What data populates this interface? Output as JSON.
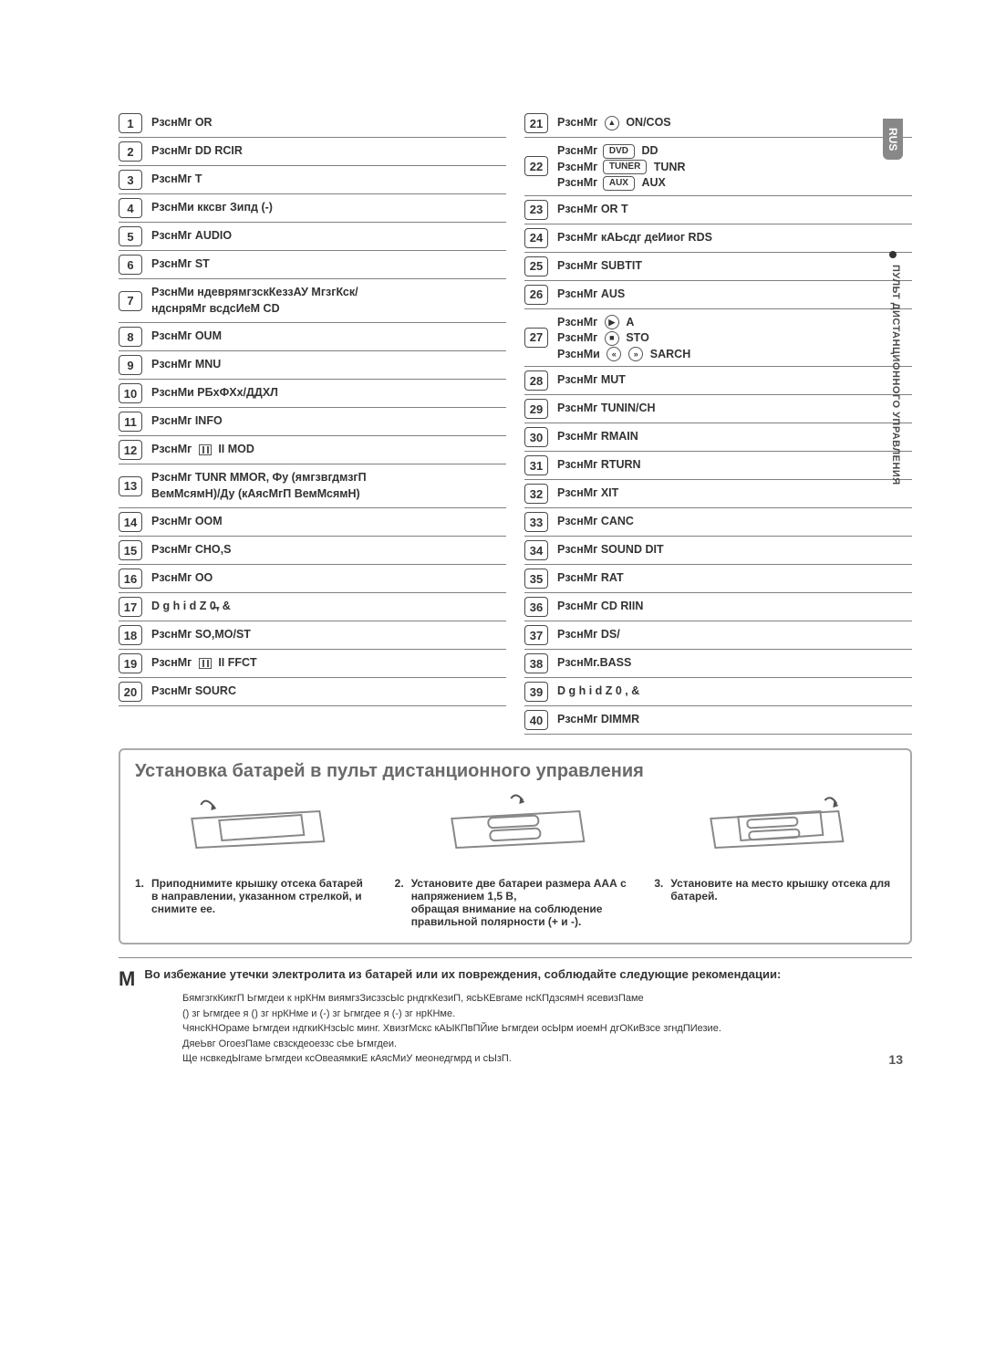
{
  "side_tab": "RUS",
  "side_text": "ПУЛЬТ ДИСТАНЦИОННОГО УПРАВЛЕНИЯ",
  "page_number": "13",
  "left_items": [
    {
      "n": "1",
      "lines": [
        "РзснМг OR"
      ]
    },
    {
      "n": "2",
      "lines": [
        "РзснМг DD RCIR"
      ]
    },
    {
      "n": "3",
      "lines": [
        "РзснМг T"
      ]
    },
    {
      "n": "4",
      "lines": [
        "РзснМи кксвг Зипд (-)"
      ]
    },
    {
      "n": "5",
      "lines": [
        "РзснМг AUDIO"
      ]
    },
    {
      "n": "6",
      "lines": [
        "РзснМг ST"
      ]
    },
    {
      "n": "7",
      "lines": [
        "РзснМи ндеврямгзскКеззАУ МгзгКск/",
        "ндснряМг всдсИеМ CD"
      ]
    },
    {
      "n": "8",
      "lines": [
        "РзснМг OUM"
      ]
    },
    {
      "n": "9",
      "lines": [
        "РзснМг MNU"
      ]
    },
    {
      "n": "10",
      "lines": [
        "РзснМи РБхФХх/ДДХЛ"
      ]
    },
    {
      "n": "11",
      "lines": [
        "РзснМг INFO"
      ]
    },
    {
      "n": "12",
      "lines": [
        "РзснМг  ▯▯ II MOD"
      ],
      "sq": true
    },
    {
      "n": "13",
      "lines": [
        "РзснМг TUNR MMOR, Фу (ямгзвгдмзгП",
        "ВемМсямН)/Ду (кАясМгП ВемМсямН)"
      ]
    },
    {
      "n": "14",
      "lines": [
        "РзснМг OOM"
      ]
    },
    {
      "n": "15",
      "lines": [
        "РзснМг CHO,S"
      ]
    },
    {
      "n": "16",
      "lines": [
        "РзснМг OO"
      ]
    },
    {
      "n": "17",
      "lines": [
        "D g h i d Z  0̶, &"
      ]
    },
    {
      "n": "18",
      "lines": [
        "РзснМг  SO,MO/ST"
      ]
    },
    {
      "n": "19",
      "lines": [
        "РзснМг  ▯▯ II FFCT"
      ],
      "sq": true
    },
    {
      "n": "20",
      "lines": [
        "РзснМг SOURC"
      ]
    }
  ],
  "right_items": [
    {
      "n": "21",
      "lines": [
        "РзснМг  ⏏ ON/COS"
      ],
      "icon": "eject"
    },
    {
      "n": "22",
      "lines": [
        "РзснМг [DVD] DD",
        "РзснМг [TUNER] TUNR",
        "РзснМг [AUX] AUX"
      ],
      "badges": [
        {
          "t": "DVD",
          "after": "DD"
        },
        {
          "t": "TUNER",
          "after": "TUNR"
        },
        {
          "t": "AUX",
          "after": "AUX"
        }
      ]
    },
    {
      "n": "23",
      "lines": [
        "РзснМг   OR   T"
      ]
    },
    {
      "n": "24",
      "lines": [
        "РзснМг кАЬсдг деИиог RDS"
      ]
    },
    {
      "n": "25",
      "lines": [
        "РзснМг SUBTIT"
      ]
    },
    {
      "n": "26",
      "lines": [
        "РзснМг AUS"
      ]
    },
    {
      "n": "27",
      "lines": [
        "РзснМг  ▶  A",
        "РзснМг  ■  STO",
        "РзснМи  ⏮ ⏭  SARCH"
      ],
      "circles": true
    },
    {
      "n": "28",
      "lines": [
        "РзснМг MUT"
      ]
    },
    {
      "n": "29",
      "lines": [
        "РзснМг TUNIN/CH"
      ]
    },
    {
      "n": "30",
      "lines": [
        "РзснМг RMAIN"
      ]
    },
    {
      "n": "31",
      "lines": [
        "РзснМг RTURN"
      ]
    },
    {
      "n": "32",
      "lines": [
        "РзснМг XIT"
      ]
    },
    {
      "n": "33",
      "lines": [
        "РзснМг CANC"
      ]
    },
    {
      "n": "34",
      "lines": [
        "РзснМг SOUND DIT"
      ]
    },
    {
      "n": "35",
      "lines": [
        "РзснМг RAT"
      ]
    },
    {
      "n": "36",
      "lines": [
        "РзснМг CD RIIN"
      ]
    },
    {
      "n": "37",
      "lines": [
        "РзснМг DS/"
      ]
    },
    {
      "n": "38",
      "lines": [
        "РзснМг.BASS"
      ]
    },
    {
      "n": "39",
      "lines": [
        "D g h i d Z  0 , &"
      ]
    },
    {
      "n": "40",
      "lines": [
        "РзснМг DIMMR"
      ]
    }
  ],
  "battery": {
    "title": "Установка батарей в пульт дистанционного управления",
    "steps": [
      {
        "n": "1.",
        "title": "Приподнимите крышку отсека батарей",
        "body": "в направлении, указанном стрелкой, и снимите ее."
      },
      {
        "n": "2.",
        "title": "Установите две батареи размера ААА с напряжением 1,5 В,",
        "body": "обращая внимание на соблюдение правильной полярности (+ и -)."
      },
      {
        "n": "3.",
        "title": "Установите на место крышку отсека для батарей.",
        "body": ""
      }
    ]
  },
  "caution": {
    "letter": "M",
    "title": "Во избежание утечки электролита из батарей или их повреждения, соблюдайте следующие рекомендации:",
    "lines": [
      "БямгзгкКикгП Ьгмгдеи к нрКНм виямгзЗисззсЫс рндгкКезиП, ясЬКЕвгаме нсКПдзсямН ясевизПаме",
      "() зг Ьгмгдее я () зг нрКНме и (-) зг Ьгмгдее я (-) зг нрКНме.",
      "ЧянсКНОраме Ьгмгдеи ндгкиКНзсЫс минг. ХвизгМскс кАЫКПвПЙие Ьгмгдеи осЫрм иоемН дгОКиВзсе згндПИезие.",
      "ДяеЬвг ОгоезПаме свзскдеоеззс сЬе Ьгмгдеи.",
      "Ще нсвкедЫгаме Ьгмгдеи ксОвеаямкиЕ кАясМиУ меонедгмрд и сЫзП."
    ]
  },
  "colors": {
    "border": "#808080",
    "text": "#333333",
    "section_title": "#6a6a6a",
    "side_tab_bg": "#888888"
  }
}
